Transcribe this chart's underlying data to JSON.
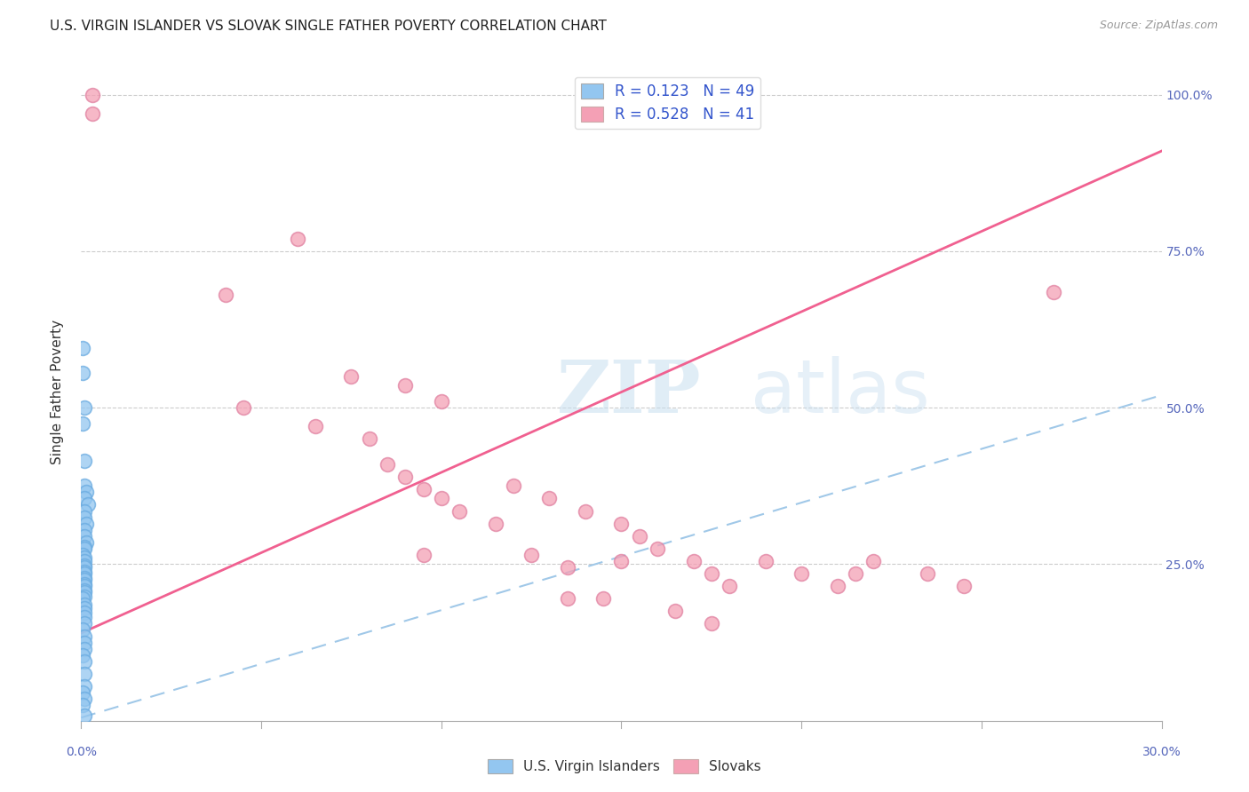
{
  "title": "U.S. VIRGIN ISLANDER VS SLOVAK SINGLE FATHER POVERTY CORRELATION CHART",
  "source": "Source: ZipAtlas.com",
  "ylabel": "Single Father Poverty",
  "right_yticks": [
    "100.0%",
    "75.0%",
    "50.0%",
    "25.0%"
  ],
  "right_ytick_vals": [
    1.0,
    0.75,
    0.5,
    0.25
  ],
  "xlim": [
    0.0,
    0.3
  ],
  "ylim": [
    0.0,
    1.05
  ],
  "R_blue": 0.123,
  "N_blue": 49,
  "R_pink": 0.528,
  "N_pink": 41,
  "blue_color": "#93c6f0",
  "pink_color": "#f4a0b5",
  "blue_line_color": "#a0c8e8",
  "pink_line_color": "#f06090",
  "legend_label_blue": "U.S. Virgin Islanders",
  "legend_label_pink": "Slovaks",
  "watermark_zip": "ZIP",
  "watermark_atlas": "atlas",
  "blue_scatter_x": [
    0.0005,
    0.0005,
    0.001,
    0.0005,
    0.001,
    0.001,
    0.0015,
    0.001,
    0.002,
    0.001,
    0.001,
    0.0015,
    0.001,
    0.001,
    0.0015,
    0.001,
    0.001,
    0.0005,
    0.001,
    0.001,
    0.001,
    0.001,
    0.001,
    0.001,
    0.001,
    0.001,
    0.001,
    0.001,
    0.001,
    0.001,
    0.001,
    0.0005,
    0.001,
    0.001,
    0.001,
    0.001,
    0.001,
    0.0005,
    0.001,
    0.001,
    0.001,
    0.0005,
    0.001,
    0.001,
    0.001,
    0.0005,
    0.001,
    0.0005,
    0.001
  ],
  "blue_scatter_y": [
    0.595,
    0.555,
    0.5,
    0.475,
    0.415,
    0.375,
    0.365,
    0.355,
    0.345,
    0.335,
    0.325,
    0.315,
    0.305,
    0.295,
    0.285,
    0.278,
    0.275,
    0.265,
    0.26,
    0.255,
    0.248,
    0.245,
    0.238,
    0.235,
    0.228,
    0.225,
    0.218,
    0.215,
    0.208,
    0.205,
    0.198,
    0.195,
    0.185,
    0.18,
    0.172,
    0.165,
    0.155,
    0.145,
    0.135,
    0.125,
    0.115,
    0.105,
    0.095,
    0.075,
    0.055,
    0.045,
    0.035,
    0.025,
    0.008
  ],
  "pink_scatter_x": [
    0.003,
    0.003,
    0.04,
    0.06,
    0.075,
    0.09,
    0.1,
    0.045,
    0.065,
    0.08,
    0.085,
    0.09,
    0.095,
    0.1,
    0.105,
    0.115,
    0.12,
    0.13,
    0.14,
    0.15,
    0.155,
    0.16,
    0.17,
    0.175,
    0.18,
    0.19,
    0.2,
    0.21,
    0.215,
    0.22,
    0.235,
    0.245,
    0.145,
    0.165,
    0.175,
    0.27,
    0.095,
    0.15,
    0.135,
    0.125,
    0.135
  ],
  "pink_scatter_y": [
    1.0,
    0.97,
    0.68,
    0.77,
    0.55,
    0.535,
    0.51,
    0.5,
    0.47,
    0.45,
    0.41,
    0.39,
    0.37,
    0.355,
    0.335,
    0.315,
    0.375,
    0.355,
    0.335,
    0.315,
    0.295,
    0.275,
    0.255,
    0.235,
    0.215,
    0.255,
    0.235,
    0.215,
    0.235,
    0.255,
    0.235,
    0.215,
    0.195,
    0.175,
    0.155,
    0.685,
    0.265,
    0.255,
    0.245,
    0.265,
    0.195
  ],
  "blue_trendline": [
    0.0,
    0.005,
    0.3,
    0.52
  ],
  "pink_trendline_x0": 0.0,
  "pink_trendline_y0": 0.14,
  "pink_trendline_x1": 0.3,
  "pink_trendline_y1": 0.91
}
